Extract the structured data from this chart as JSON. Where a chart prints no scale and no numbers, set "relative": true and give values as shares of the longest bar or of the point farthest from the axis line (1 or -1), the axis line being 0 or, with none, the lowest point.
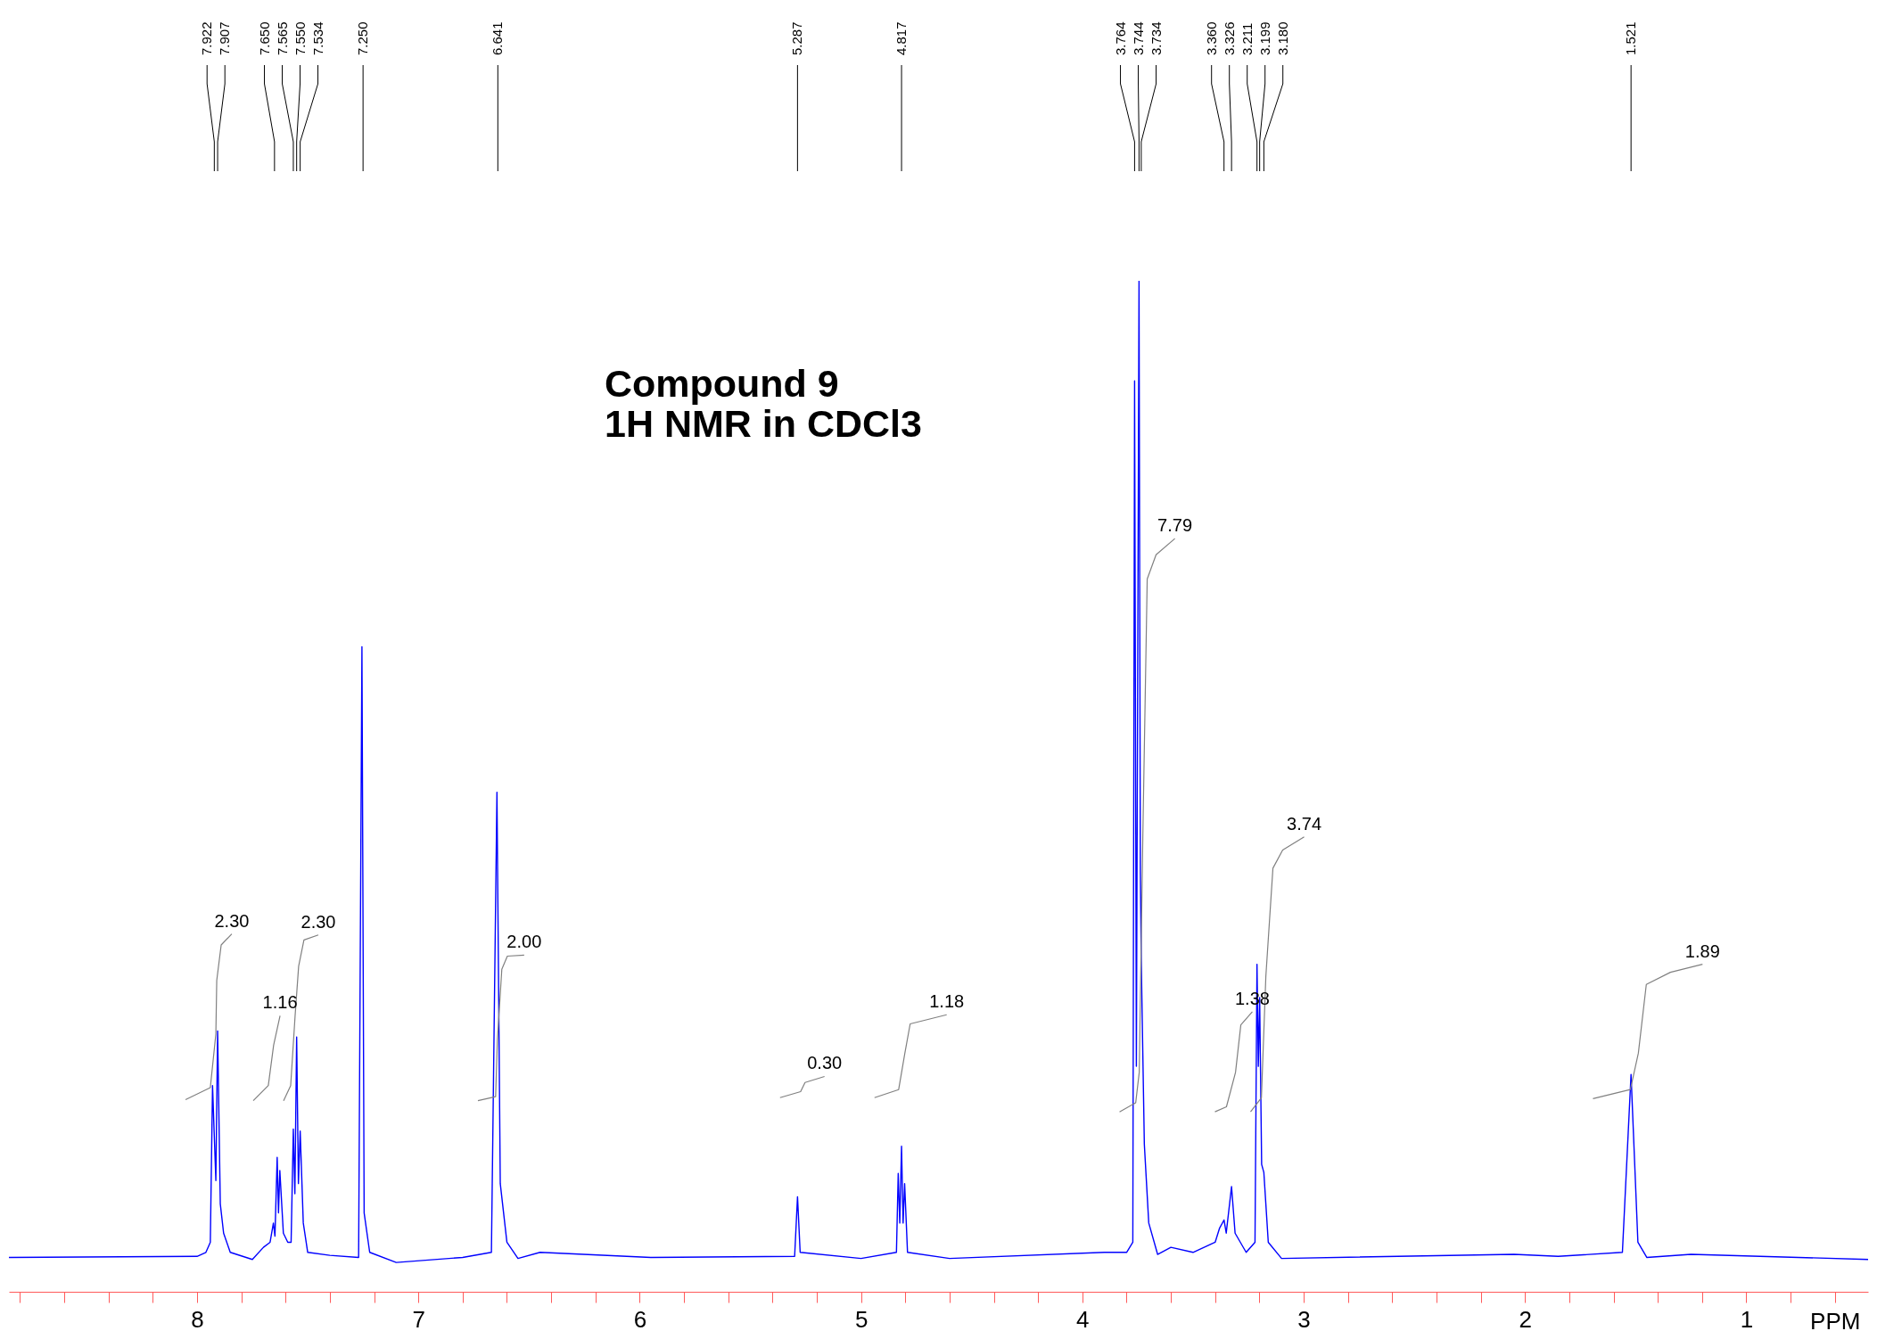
{
  "chart_data": {
    "type": "line",
    "title": "Compound 9",
    "subtitle": "1H NMR in CDCl3",
    "xlabel": "PPM",
    "relative": true,
    "grid": false,
    "xlim": [
      8.85,
      0.45
    ],
    "xticks": [
      {
        "value": 8.8,
        "label": null
      },
      {
        "value": 8.6,
        "label": null
      },
      {
        "value": 8.4,
        "label": null
      },
      {
        "value": 8.2,
        "label": null
      },
      8,
      {
        "value": 7.8,
        "label": null
      },
      {
        "value": 7.6,
        "label": null
      },
      {
        "value": 7.4,
        "label": null
      },
      {
        "value": 7.2,
        "label": null
      },
      7,
      {
        "value": 6.8,
        "label": null
      },
      {
        "value": 6.6,
        "label": null
      },
      {
        "value": 6.4,
        "label": null
      },
      {
        "value": 6.2,
        "label": null
      },
      6,
      {
        "value": 5.8,
        "label": null
      },
      {
        "value": 5.6,
        "label": null
      },
      {
        "value": 5.4,
        "label": null
      },
      {
        "value": 5.2,
        "label": null
      },
      5,
      {
        "value": 4.8,
        "label": null
      },
      {
        "value": 4.6,
        "label": null
      },
      {
        "value": 4.4,
        "label": null
      },
      {
        "value": 4.2,
        "label": null
      },
      4,
      {
        "value": 3.8,
        "label": null
      },
      {
        "value": 3.6,
        "label": null
      },
      {
        "value": 3.4,
        "label": null
      },
      {
        "value": 3.2,
        "label": null
      },
      3,
      {
        "value": 2.8,
        "label": null
      },
      {
        "value": 2.6,
        "label": null
      },
      {
        "value": 2.4,
        "label": null
      },
      {
        "value": 2.2,
        "label": null
      },
      2,
      {
        "value": 1.8,
        "label": null
      },
      {
        "value": 1.6,
        "label": null
      },
      {
        "value": 1.4,
        "label": null
      },
      {
        "value": 1.2,
        "label": null
      },
      1,
      {
        "value": 0.8,
        "label": null
      },
      {
        "value": 0.6,
        "label": null
      }
    ],
    "series": [
      {
        "color": "#0000ff",
        "x": [
          8.85,
          8.0,
          7.96,
          7.94,
          7.93,
          7.915,
          7.907,
          7.895,
          7.88,
          7.85,
          7.75,
          7.7,
          7.67,
          7.655,
          7.648,
          7.638,
          7.632,
          7.626,
          7.61,
          7.59,
          7.575,
          7.565,
          7.558,
          7.55,
          7.542,
          7.534,
          7.52,
          7.5,
          7.4,
          7.27,
          7.255,
          7.245,
          7.22,
          7.1,
          6.8,
          6.67,
          6.645,
          6.63,
          6.6,
          6.55,
          6.45,
          5.95,
          5.3,
          5.287,
          5.275,
          5.0,
          4.84,
          4.832,
          4.825,
          4.817,
          4.81,
          4.803,
          4.79,
          4.6,
          3.9,
          3.8,
          3.772,
          3.764,
          3.756,
          3.744,
          3.738,
          3.734,
          3.72,
          3.7,
          3.66,
          3.6,
          3.5,
          3.4,
          3.38,
          3.36,
          3.35,
          3.326,
          3.31,
          3.26,
          3.22,
          3.211,
          3.205,
          3.199,
          3.19,
          3.18,
          3.16,
          3.1,
          2.05,
          1.85,
          1.56,
          1.521,
          1.49,
          1.45,
          1.25,
          0.45
        ],
        "values": [
          0.034,
          0.035,
          0.039,
          0.049,
          0.204,
          0.11,
          0.258,
          0.087,
          0.058,
          0.039,
          0.032,
          0.044,
          0.049,
          0.068,
          0.055,
          0.133,
          0.078,
          0.12,
          0.058,
          0.049,
          0.049,
          0.161,
          0.097,
          0.252,
          0.107,
          0.159,
          0.068,
          0.039,
          0.036,
          0.034,
          0.638,
          0.078,
          0.039,
          0.029,
          0.034,
          0.039,
          0.494,
          0.107,
          0.049,
          0.033,
          0.039,
          0.034,
          0.035,
          0.094,
          0.039,
          0.033,
          0.039,
          0.117,
          0.068,
          0.144,
          0.068,
          0.107,
          0.039,
          0.033,
          0.039,
          0.039,
          0.049,
          0.901,
          0.223,
          1.0,
          0.417,
          0.328,
          0.146,
          0.068,
          0.037,
          0.044,
          0.039,
          0.049,
          0.063,
          0.071,
          0.058,
          0.104,
          0.058,
          0.039,
          0.049,
          0.324,
          0.223,
          0.291,
          0.126,
          0.118,
          0.049,
          0.033,
          0.037,
          0.035,
          0.039,
          0.215,
          0.049,
          0.034,
          0.037,
          0.032
        ]
      },
      {
        "color": "#808080",
        "x": [
          8.052,
          7.94,
          7.915,
          7.911,
          7.891,
          7.843
        ],
        "values": [
          0.19,
          0.202,
          0.255,
          0.308,
          0.343,
          0.354
        ]
      },
      {
        "color": "#808080",
        "x": [
          7.746,
          7.678,
          7.654,
          7.625
        ],
        "values": [
          0.189,
          0.204,
          0.244,
          0.273
        ]
      },
      {
        "color": "#808080",
        "x": [
          7.609,
          7.577,
          7.557,
          7.541,
          7.517,
          7.452
        ],
        "values": [
          0.189,
          0.204,
          0.273,
          0.322,
          0.348,
          0.353
        ]
      },
      {
        "color": "#808080",
        "x": [
          6.731,
          6.651,
          6.643,
          6.623,
          6.598,
          6.522
        ],
        "values": [
          0.189,
          0.193,
          0.249,
          0.319,
          0.332,
          0.333
        ]
      },
      {
        "color": "#808080",
        "x": [
          5.366,
          5.273,
          5.253,
          5.165
        ],
        "values": [
          0.192,
          0.198,
          0.207,
          0.213
        ]
      },
      {
        "color": "#808080",
        "x": [
          4.939,
          4.83,
          4.802,
          4.778,
          4.613
        ],
        "values": [
          0.192,
          0.2,
          0.236,
          0.265,
          0.274
        ]
      },
      {
        "color": "#808080",
        "x": [
          3.832,
          3.759,
          3.743,
          3.727,
          3.707,
          3.667,
          3.582
        ],
        "values": [
          0.178,
          0.187,
          0.217,
          0.448,
          0.705,
          0.729,
          0.745
        ]
      },
      {
        "color": "#808080",
        "x": [
          3.401,
          3.349,
          3.308,
          3.284,
          3.232
        ],
        "values": [
          0.178,
          0.183,
          0.217,
          0.264,
          0.277
        ]
      },
      {
        "color": "#808080",
        "x": [
          3.24,
          3.191,
          3.171,
          3.139,
          3.095,
          2.998
        ],
        "values": [
          0.178,
          0.192,
          0.312,
          0.419,
          0.437,
          0.45
        ]
      },
      {
        "color": "#808080",
        "x": [
          1.693,
          1.524,
          1.488,
          1.452,
          1.343,
          1.198
        ],
        "values": [
          0.191,
          0.2,
          0.236,
          0.304,
          0.316,
          0.324
        ]
      }
    ],
    "annotations": [
      {
        "text": "7.922",
        "x": 7.922
      },
      {
        "text": "7.907",
        "x": 7.907
      },
      {
        "text": "7.650",
        "x": 7.65
      },
      {
        "text": "7.565",
        "x": 7.565
      },
      {
        "text": "7.550",
        "x": 7.55
      },
      {
        "text": "7.534",
        "x": 7.534
      },
      {
        "text": "7.250",
        "x": 7.25
      },
      {
        "text": "6.641",
        "x": 6.641
      },
      {
        "text": "5.287",
        "x": 5.287
      },
      {
        "text": "4.817",
        "x": 4.817
      },
      {
        "text": "3.764",
        "x": 3.764
      },
      {
        "text": "3.744",
        "x": 3.744
      },
      {
        "text": "3.734",
        "x": 3.734
      },
      {
        "text": "3.360",
        "x": 3.36
      },
      {
        "text": "3.326",
        "x": 3.326
      },
      {
        "text": "3.211",
        "x": 3.211
      },
      {
        "text": "3.199",
        "x": 3.199
      },
      {
        "text": "3.180",
        "x": 3.18
      },
      {
        "text": "1.521",
        "x": 1.521
      },
      {
        "text": "2.30",
        "x": 7.843,
        "y": 0.354
      },
      {
        "text": "1.16",
        "x": 7.625,
        "y": 0.273
      },
      {
        "text": "2.30",
        "x": 7.452,
        "y": 0.353
      },
      {
        "text": "2.00",
        "x": 6.522,
        "y": 0.333
      },
      {
        "text": "0.30",
        "x": 5.165,
        "y": 0.213
      },
      {
        "text": "1.18",
        "x": 4.613,
        "y": 0.274
      },
      {
        "text": "7.79",
        "x": 3.582,
        "y": 0.745
      },
      {
        "text": "1.38",
        "x": 3.232,
        "y": 0.277
      },
      {
        "text": "3.74",
        "x": 2.998,
        "y": 0.45
      },
      {
        "text": "1.89",
        "x": 1.198,
        "y": 0.324
      }
    ]
  }
}
